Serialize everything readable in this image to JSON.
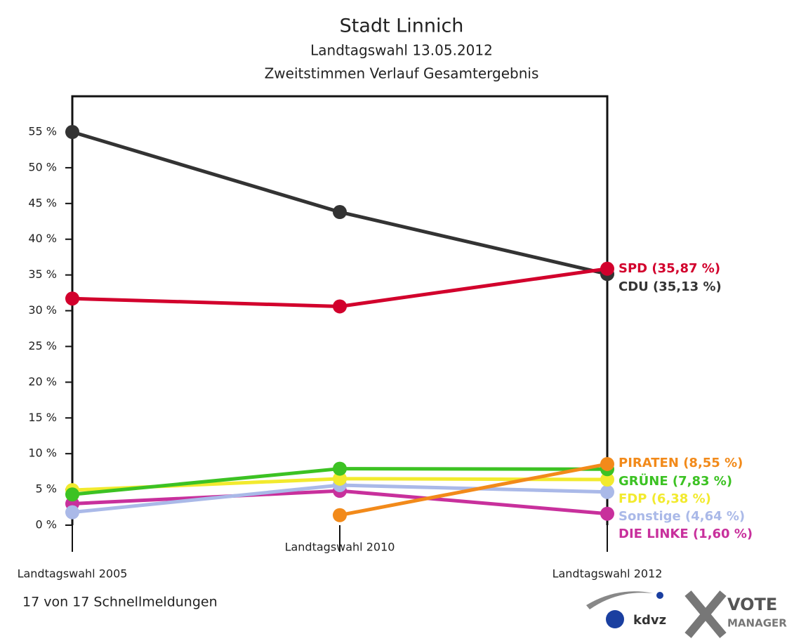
{
  "chart_data": {
    "type": "line",
    "title": "Stadt Linnich",
    "subtitle": [
      "Landtagswahl 13.05.2012",
      "Zweitstimmen Verlauf Gesamtergebnis"
    ],
    "categories": [
      "Landtagswahl 2005",
      "Landtagswahl 2010",
      "Landtagswahl 2012"
    ],
    "ylim": [
      0,
      60
    ],
    "yticks": [
      {
        "value": 0,
        "label": "0 %"
      },
      {
        "value": 5,
        "label": "5 %"
      },
      {
        "value": 10,
        "label": "10 %"
      },
      {
        "value": 15,
        "label": "15 %"
      },
      {
        "value": 20,
        "label": "20 %"
      },
      {
        "value": 25,
        "label": "25 %"
      },
      {
        "value": 30,
        "label": "30 %"
      },
      {
        "value": 35,
        "label": "35 %"
      },
      {
        "value": 40,
        "label": "40 %"
      },
      {
        "value": 45,
        "label": "45 %"
      },
      {
        "value": 50,
        "label": "50 %"
      },
      {
        "value": 55,
        "label": "55 %"
      }
    ],
    "series": [
      {
        "name": "SPD",
        "color": "#d2002c",
        "values": [
          31.7,
          30.6,
          35.87
        ],
        "value_labels": [
          null,
          null,
          "SPD (35,87 %)"
        ]
      },
      {
        "name": "CDU",
        "color": "#333333",
        "values": [
          55.0,
          43.8,
          35.13
        ],
        "value_labels": [
          null,
          null,
          "CDU (35,13 %)"
        ]
      },
      {
        "name": "PIRATEN",
        "color": "#f28a1a",
        "values": [
          null,
          1.4,
          8.55
        ],
        "value_labels": [
          null,
          null,
          "PIRATEN (8,55 %)"
        ]
      },
      {
        "name": "GRÜNE",
        "color": "#3cc223",
        "values": [
          4.3,
          7.9,
          7.83
        ],
        "value_labels": [
          null,
          null,
          "GRÜNE (7,83 %)"
        ]
      },
      {
        "name": "FDP",
        "color": "#f2ea2e",
        "values": [
          4.9,
          6.5,
          6.38
        ],
        "value_labels": [
          null,
          null,
          "FDP (6,38 %)"
        ]
      },
      {
        "name": "Sonstige",
        "color": "#aab9e8",
        "values": [
          1.8,
          5.6,
          4.64
        ],
        "value_labels": [
          null,
          null,
          "Sonstige (4,64 %)"
        ]
      },
      {
        "name": "DIE LINKE",
        "color": "#c8309c",
        "values": [
          3.0,
          4.8,
          1.6
        ],
        "value_labels": [
          null,
          null,
          "DIE LINKE (1,60 %)"
        ]
      }
    ],
    "footer": "17 von 17 Schnellmeldungen",
    "logos": [
      "kdvz",
      "VOTE",
      "MANAGER"
    ]
  }
}
